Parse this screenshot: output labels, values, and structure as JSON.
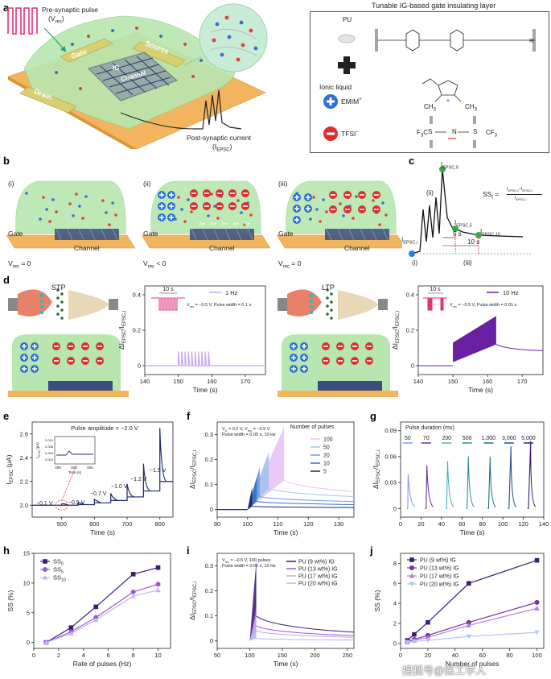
{
  "panel_a": {
    "label": "a",
    "pulse_title": "Pre-synaptic pulse",
    "pulse_sym": "(V",
    "pulse_sub": "rec",
    "pulse_close": ")",
    "gate": "Gate",
    "source": "Source",
    "drain": "Drain",
    "channel": "Channel",
    "ig": "IG",
    "current_title": "Post-synaptic current",
    "current_sym": "(I",
    "current_sub": "EPSC",
    "current_close": ")",
    "box_title": "Tunable IG-based gate insulating layer",
    "pu": "PU",
    "ionic_liquid": "Ionic liquid",
    "emim": "EMIM",
    "emim_sup": "+",
    "tfsi": "TFSI",
    "tfsi_sup": "−",
    "ch3_left": "CH",
    "ch3_left_sub": "3",
    "ch3_right": "CH",
    "ch3_right_sub": "3",
    "f3c": "F",
    "f3c_sub": "3",
    "f3c_end": "C",
    "cf3": "CF",
    "cf3_sub": "3",
    "r": "R",
    "s_left": "S",
    "s_right": "S",
    "n_mid": "N"
  },
  "panel_b": {
    "label": "b",
    "states": [
      {
        "roman": "(i)",
        "gate": "Gate",
        "channel": "Channel",
        "vrec_sym": "V",
        "vrec_sub": "rec",
        "vrec_val": " = 0"
      },
      {
        "roman": "(ii)",
        "gate": "Gate",
        "channel": "Channel",
        "vrec_sym": "V",
        "vrec_sub": "rec",
        "vrec_val": " < 0"
      },
      {
        "roman": "(iii)",
        "gate": "Gate",
        "channel": "Channel",
        "vrec_sym": "V",
        "vrec_sub": "rec",
        "vrec_val": " = 0"
      }
    ],
    "hole": "h",
    "hole_sup": "+"
  },
  "panel_c": {
    "label": "c",
    "peak": "I",
    "peak_sub": "EPSC,0",
    "i5": "I",
    "i5_sub": "EPSC,5",
    "i10": "I",
    "i10_sub": "EPSC,10",
    "ii": "I",
    "ii_sub": "EPSC,i",
    "roman_i": "(i)",
    "roman_ii": "(ii)",
    "roman_iii": "(iii)",
    "five_s": "5 s",
    "ten_s": "10 s",
    "ss": "SS",
    "ss_sub": "t",
    "ss_eq": " = ",
    "ss_num": "I",
    "ss_num_sub": "EPSC,t",
    "ss_minus": "−I",
    "ss_minus_sub": "EPSC,i",
    "ss_den": "I",
    "ss_den_sub": "EPSC,i"
  },
  "panel_d": {
    "label": "d",
    "stp": "STP",
    "ltp": "LTP",
    "left": {
      "legend": "1 Hz",
      "bracket": "10 s",
      "cond": "V",
      "cond_sub": "rec",
      "cond_val": " = −0.5 V, Pulse width = 0.1 s",
      "xlabel": "Time (s)",
      "xticks": [
        "140",
        "150",
        "160",
        "170"
      ],
      "yticks": [
        "0",
        "0.2",
        "0.4"
      ],
      "ylabel": "ΔI",
      "ylabel_sub": "EPSC",
      "ylabel_mid": "/I",
      "ylabel_sub2": "EPSC,i"
    },
    "right": {
      "legend": "10 Hz",
      "bracket": "10 s",
      "dots": "···",
      "cond": "V",
      "cond_sub": "rec",
      "cond_val": " = −0.5 V, Pulse width = 0.01 s",
      "xlabel": "Time (s)",
      "xticks": [
        "140",
        "150",
        "160",
        "170"
      ],
      "yticks": [
        "0",
        "0.2",
        "0.4"
      ],
      "ylabel": "ΔI",
      "ylabel_sub": "EPSC",
      "ylabel_mid": "/I",
      "ylabel_sub2": "EPSC,i"
    }
  },
  "panel_e": {
    "label": "e",
    "annotation": "Pulse amplitude = −2.0 V",
    "step_labels": [
      "−0.1 V",
      "−0.5 V",
      "−0.7 V",
      "−1.0 V",
      "−1.2 V",
      "−1.5 V"
    ],
    "xlabel": "Time (s)",
    "ylabel": "I",
    "ylabel_sub": "EPSC",
    "ylabel_unit": " (μA)",
    "xticks": [
      "500",
      "600",
      "700",
      "800"
    ],
    "yticks": [
      "2.0",
      "2.2",
      "2.4",
      "2.6"
    ],
    "inset": {
      "ylabel": "I",
      "ylabel_sub": "EPSC",
      "ylabel_unit": " (μA)",
      "xlabel": "Time (s)",
      "xticks": [
        "495",
        "500",
        "505"
      ],
      "yticks": [
        "2.010",
        "2.008",
        "2.006",
        "2.004"
      ]
    }
  },
  "panel_f": {
    "label": "f",
    "cond1": "V",
    "cond1_sub": "D",
    "cond1_val": " = 0.2 V, V",
    "cond1_sub2": "rec",
    "cond1_val2": " = −0.5 V",
    "cond2": "Pulse width = 0.05 s, 10 Hz",
    "legend_title": "Number of pulses",
    "legend": [
      "100",
      "50",
      "20",
      "10",
      "5"
    ],
    "xlabel": "Time (s)",
    "xticks": [
      "90",
      "100",
      "110",
      "120",
      "130"
    ],
    "yticks": [
      "0",
      "0.1",
      "0.2",
      "0.3"
    ],
    "ylabel": "ΔI",
    "ylabel_sub": "EPSC",
    "ylabel_mid": "/I",
    "ylabel_sub2": "EPSC,i"
  },
  "panel_g": {
    "label": "g",
    "title": "Pulse duration (ms)",
    "durations": [
      "50",
      "70",
      "200",
      "500",
      "1,000",
      "3,000",
      "5,000"
    ],
    "xlabel": "Time (s)",
    "xticks": [
      "0",
      "20",
      "40",
      "60",
      "80",
      "100",
      "120",
      "140"
    ],
    "yticks": [
      "0",
      "0.03",
      "0.06",
      "0.09"
    ],
    "ylabel": "ΔI",
    "ylabel_sub": "EPSC",
    "ylabel_mid": "/I",
    "ylabel_sub2": "EPSC,i"
  },
  "panel_h": {
    "label": "h",
    "xlabel": "Rate of pulses (Hz)",
    "ylabel": "SS (%)",
    "xticks": [
      "0",
      "2",
      "4",
      "6",
      "8",
      "10"
    ],
    "yticks": [
      "0",
      "5",
      "10",
      "15"
    ],
    "legend": [
      {
        "sym": "SS",
        "sub": "0"
      },
      {
        "sym": "SS",
        "sub": "5"
      },
      {
        "sym": "SS",
        "sub": "10"
      }
    ]
  },
  "panel_i": {
    "label": "i",
    "cond1": "V",
    "cond1_sub": "rec",
    "cond1_val": " = −0.5 V, 100 pulses",
    "cond2": "Pulse width = 0.05 s, 10 Hz",
    "legend": [
      "PU (9 wt%) IG",
      "PU (13 wt%) IG",
      "PU (17 wt%) IG",
      "PU (20 wt%) IG"
    ],
    "xlabel": "Time (s)",
    "xticks": [
      "50",
      "100",
      "150",
      "200",
      "250"
    ],
    "yticks": [
      "0",
      "0.1",
      "0.2",
      "0.3"
    ],
    "ylabel": "ΔI",
    "ylabel_sub": "EPSC",
    "ylabel_mid": "/I",
    "ylabel_sub2": "EPSC,i"
  },
  "panel_j": {
    "label": "j",
    "legend": [
      "PU (9 wt%) IG",
      "PU (13 wt%) IG",
      "PU (17 wt%) IG",
      "PU (20 wt%) IG"
    ],
    "xlabel": "Number of pulses",
    "ylabel": "SS (%)",
    "xticks": [
      "0",
      "20",
      "40",
      "60",
      "80",
      "100"
    ],
    "yticks": [
      "0",
      "2",
      "4",
      "6",
      "8"
    ]
  },
  "watermark": "搜狐号@医工学人",
  "colors": {
    "purple_dark": "#3b1a78",
    "purple": "#7b2fa6",
    "lilac": "#c7a6ec",
    "lavender": "#b8b5f0",
    "light_blue": "#a9c8f5",
    "navy": "#1f2a66",
    "green_gel": "#b9e6b0",
    "orange_sub": "#f2b45c",
    "pink_pulse": "#e0307a"
  },
  "chart_data": [
    {
      "type": "line",
      "id": "d-left",
      "title": "",
      "xlabel": "Time (s)",
      "ylabel": "ΔIEPSC/IEPSC,i",
      "xlim": [
        140,
        176
      ],
      "ylim": [
        -0.05,
        0.45
      ],
      "series": [
        {
          "name": "1 Hz",
          "pulse_times": [
            150,
            151,
            152,
            153,
            154,
            155,
            156,
            157,
            158,
            159
          ],
          "peak": 0.08
        }
      ]
    },
    {
      "type": "area",
      "id": "d-right",
      "xlabel": "Time (s)",
      "ylabel": "ΔIEPSC/IEPSC,i",
      "xlim": [
        140,
        176
      ],
      "ylim": [
        -0.05,
        0.45
      ],
      "series": [
        {
          "name": "10 Hz",
          "start": 150,
          "end": 162.5,
          "env_low_start": 0.02,
          "env_low_end": 0.12,
          "env_high_start": 0.13,
          "env_high_end": 0.28,
          "plateau": 0.09
        }
      ]
    },
    {
      "type": "line",
      "id": "e",
      "xlabel": "Time (s)",
      "ylabel": "IEPSC (μA)",
      "xlim": [
        410,
        840
      ],
      "ylim": [
        1.9,
        2.7
      ],
      "series": [
        {
          "name": "",
          "spikes": [
            [
              500,
              2.01
            ],
            [
              550,
              2.02
            ],
            [
              600,
              2.05
            ],
            [
              650,
              2.1
            ],
            [
              700,
              2.18
            ],
            [
              750,
              2.35
            ],
            [
              800,
              2.65
            ]
          ],
          "baseline": [
            [
              410,
              2.0
            ],
            [
              500,
              2.0
            ],
            [
              550,
              2.005
            ],
            [
              600,
              2.02
            ],
            [
              650,
              2.04
            ],
            [
              700,
              2.07
            ],
            [
              750,
              2.12
            ],
            [
              800,
              2.2
            ],
            [
              840,
              2.2
            ]
          ]
        }
      ]
    },
    {
      "type": "line",
      "id": "f",
      "xlabel": "Time (s)",
      "ylabel": "ΔIEPSC/IEPSC,i",
      "xlim": [
        90,
        135
      ],
      "ylim": [
        -0.03,
        0.35
      ],
      "series": [
        {
          "name": "100",
          "end": 112,
          "peak": 0.33,
          "plateau": 0.09
        },
        {
          "name": "50",
          "end": 107,
          "peak": 0.23,
          "plateau": 0.065
        },
        {
          "name": "20",
          "end": 104,
          "peak": 0.17,
          "plateau": 0.04
        },
        {
          "name": "10",
          "end": 103,
          "peak": 0.13,
          "plateau": 0.025
        },
        {
          "name": "5",
          "end": 101.5,
          "peak": 0.09,
          "plateau": 0.01
        }
      ]
    },
    {
      "type": "line",
      "id": "g",
      "xlabel": "Time (s)",
      "ylabel": "ΔIEPSC/IEPSC,i",
      "xlim": [
        0,
        140
      ],
      "ylim": [
        -0.01,
        0.1
      ],
      "series": [
        {
          "name": "50",
          "t": 7,
          "peak": 0.04
        },
        {
          "name": "70",
          "t": 25,
          "peak": 0.05
        },
        {
          "name": "200",
          "t": 45,
          "peak": 0.055
        },
        {
          "name": "500",
          "t": 65,
          "peak": 0.06
        },
        {
          "name": "1,000",
          "t": 86,
          "peak": 0.06
        },
        {
          "name": "3,000",
          "t": 106,
          "peak": 0.072
        },
        {
          "name": "5,000",
          "t": 125,
          "peak": 0.078
        }
      ]
    },
    {
      "type": "line",
      "id": "h",
      "xlabel": "Rate of pulses (Hz)",
      "ylabel": "SS (%)",
      "xlim": [
        0,
        11
      ],
      "ylim": [
        -1,
        15
      ],
      "x": [
        1,
        3,
        5,
        8,
        10
      ],
      "series": [
        {
          "name": "SS0",
          "values": [
            0,
            2.5,
            6.0,
            11.5,
            12.6
          ]
        },
        {
          "name": "SS5",
          "values": [
            0,
            1.8,
            4.2,
            8.5,
            9.8
          ]
        },
        {
          "name": "SS10",
          "values": [
            0,
            1.5,
            3.8,
            7.8,
            8.8
          ]
        }
      ]
    },
    {
      "type": "line",
      "id": "i",
      "xlabel": "Time (s)",
      "ylabel": "ΔIEPSC/IEPSC,i",
      "xlim": [
        50,
        260
      ],
      "ylim": [
        -0.03,
        0.35
      ],
      "series": [
        {
          "name": "PU (9 wt%) IG",
          "peak": 0.32,
          "plateau": 0.05
        },
        {
          "name": "PU (13 wt%) IG",
          "peak": 0.14,
          "plateau": 0.03
        },
        {
          "name": "PU (17 wt%) IG",
          "peak": 0.11,
          "plateau": 0.02
        },
        {
          "name": "PU (20 wt%) IG",
          "peak": 0.06,
          "plateau": 0.005
        }
      ]
    },
    {
      "type": "line",
      "id": "j",
      "xlabel": "Number of pulses",
      "ylabel": "SS (%)",
      "xlim": [
        0,
        105
      ],
      "ylim": [
        -0.5,
        9
      ],
      "x": [
        5,
        10,
        20,
        50,
        100
      ],
      "series": [
        {
          "name": "PU (9 wt%) IG",
          "values": [
            0.3,
            0.9,
            2.1,
            6.0,
            8.3
          ]
        },
        {
          "name": "PU (13 wt%) IG",
          "values": [
            0.2,
            0.4,
            0.8,
            2.1,
            4.1
          ]
        },
        {
          "name": "PU (17 wt%) IG",
          "values": [
            0.1,
            0.3,
            0.6,
            1.8,
            3.5
          ]
        },
        {
          "name": "PU (20 wt%) IG",
          "values": [
            0.1,
            0.2,
            0.3,
            0.7,
            1.1
          ]
        }
      ]
    }
  ]
}
